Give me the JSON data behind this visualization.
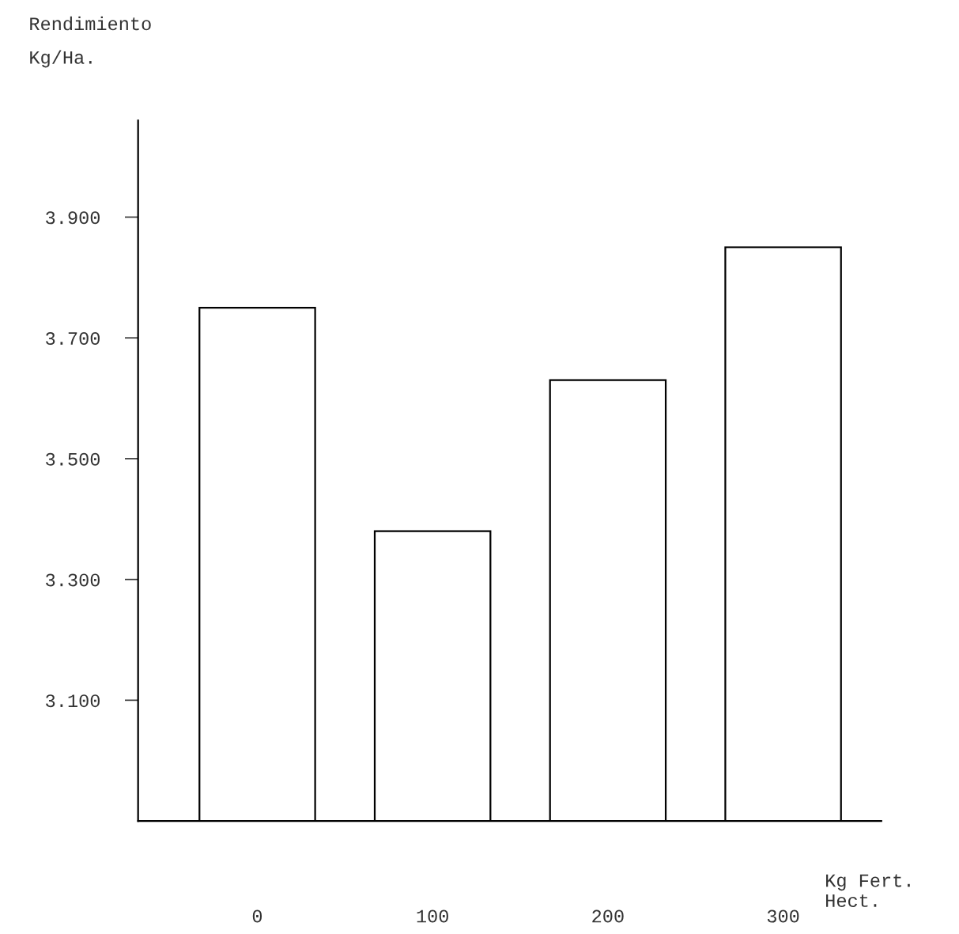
{
  "chart_data": {
    "type": "bar",
    "xlabel": "Kg Fert.\nHect.",
    "ylabel": "Rendimiento\nKg/Ha.",
    "categories": [
      "0",
      "100",
      "200",
      "300"
    ],
    "values": [
      3750,
      3380,
      3630,
      3850
    ],
    "color": "#ffffff",
    "ylim": [
      2900,
      4060
    ],
    "yticks": [
      {
        "value": 3100,
        "label": "3.100"
      },
      {
        "value": 3300,
        "label": "3.300"
      },
      {
        "value": 3500,
        "label": "3.500"
      },
      {
        "value": 3700,
        "label": "3.700"
      },
      {
        "value": 3900,
        "label": "3.900"
      }
    ]
  }
}
